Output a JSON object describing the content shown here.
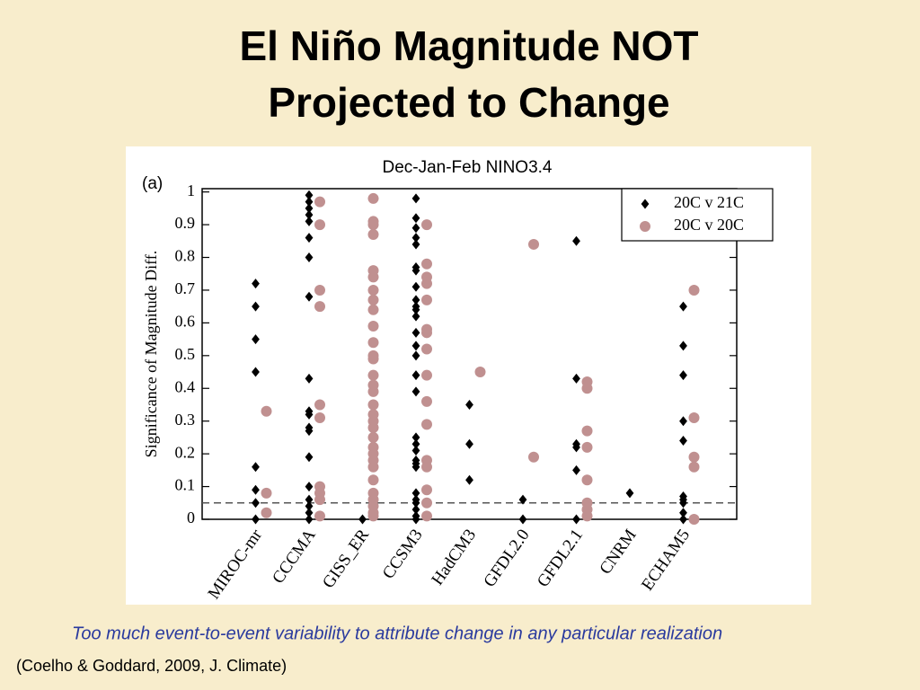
{
  "slide": {
    "title": [
      "El Niño Magnitude NOT",
      "Projected to Change"
    ],
    "caption": "Too much event-to-event variability to attribute change in any particular realization",
    "citation": "(Coelho & Goddard, 2009, J. Climate)"
  },
  "chart_data": {
    "type": "strip",
    "panel_label": "(a)",
    "title": "Dec-Jan-Feb NINO3.4",
    "y_label": "Significance of Magnitude Diff.",
    "categories": [
      "MIROC-mr",
      "CCCMA",
      "GISS_ER",
      "CCSM3",
      "HadCM3",
      "GFDL2.0",
      "GFDL2.1",
      "CNRM",
      "ECHAM5"
    ],
    "series": [
      {
        "name": "20C v 21C",
        "color": "#000000",
        "marker": "diamond",
        "values": [
          [
            0.72,
            0.65,
            0.55,
            0.45,
            0.16,
            0.09,
            0.05,
            0.0
          ],
          [
            0.99,
            0.97,
            0.95,
            0.93,
            0.91,
            0.86,
            0.8,
            0.68,
            0.43,
            0.33,
            0.32,
            0.28,
            0.27,
            0.19,
            0.1,
            0.06,
            0.04,
            0.02,
            0.0
          ],
          [
            0.0
          ],
          [
            0.98,
            0.92,
            0.89,
            0.86,
            0.84,
            0.77,
            0.76,
            0.71,
            0.67,
            0.65,
            0.64,
            0.62,
            0.57,
            0.53,
            0.5,
            0.44,
            0.39,
            0.25,
            0.23,
            0.21,
            0.18,
            0.17,
            0.16,
            0.08,
            0.06,
            0.05,
            0.03,
            0.01,
            0.0
          ],
          [
            0.35,
            0.23,
            0.12
          ],
          [
            0.06,
            0.0
          ],
          [
            0.85,
            0.43,
            0.23,
            0.22,
            0.15,
            0.0
          ],
          [
            0.08
          ],
          [
            0.65,
            0.53,
            0.44,
            0.3,
            0.24,
            0.07,
            0.06,
            0.05,
            0.02,
            0.0
          ]
        ]
      },
      {
        "name": "20C v 20C",
        "color": "#c09090",
        "marker": "circle",
        "values": [
          [
            0.33,
            0.08,
            0.02
          ],
          [
            0.97,
            0.9,
            0.7,
            0.65,
            0.35,
            0.31,
            0.1,
            0.08,
            0.06,
            0.01
          ],
          [
            0.98,
            0.91,
            0.9,
            0.87,
            0.76,
            0.74,
            0.7,
            0.67,
            0.64,
            0.59,
            0.54,
            0.5,
            0.49,
            0.44,
            0.41,
            0.39,
            0.35,
            0.32,
            0.3,
            0.28,
            0.25,
            0.22,
            0.2,
            0.18,
            0.16,
            0.12,
            0.08,
            0.06,
            0.04,
            0.02,
            0.01
          ],
          [
            0.9,
            0.78,
            0.74,
            0.72,
            0.67,
            0.58,
            0.57,
            0.52,
            0.44,
            0.36,
            0.29,
            0.18,
            0.16,
            0.09,
            0.05,
            0.01
          ],
          [
            0.45
          ],
          [
            0.84,
            0.19
          ],
          [
            0.42,
            0.4,
            0.27,
            0.22,
            0.12,
            0.05,
            0.03,
            0.01
          ],
          [],
          [
            0.7,
            0.31,
            0.19,
            0.16,
            0.0
          ]
        ]
      }
    ],
    "reference_line": 0.05,
    "ylim": [
      0,
      1.01
    ],
    "yticks": [
      0,
      0.1,
      0.2,
      0.3,
      0.4,
      0.5,
      0.6,
      0.7,
      0.8,
      0.9,
      1
    ],
    "legend": "upper right"
  }
}
